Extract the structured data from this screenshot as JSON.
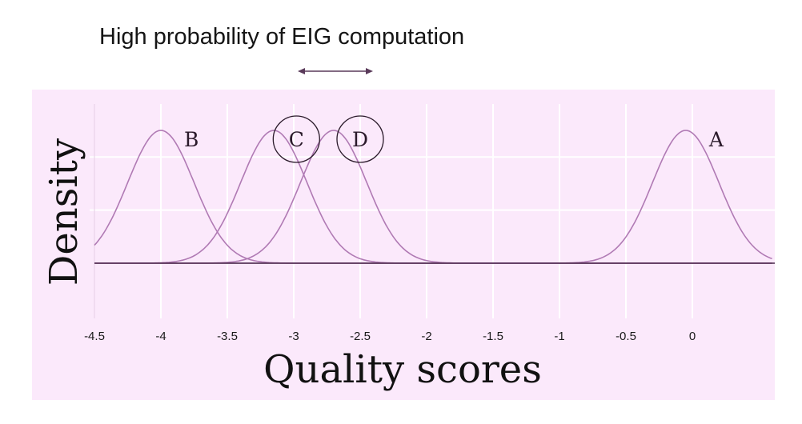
{
  "annotation": {
    "text": "High probability of EIG computation",
    "arrow": "double-headed"
  },
  "chart_data": {
    "type": "line",
    "title": "",
    "xlabel": "Quality scores",
    "ylabel": "Density",
    "xlim": [
      -4.5,
      0.6
    ],
    "ylim": [
      0,
      1.1
    ],
    "x_ticks": [
      -4.5,
      -4,
      -3.5,
      -3,
      -2.5,
      -2,
      -1.5,
      -1,
      -0.5,
      0
    ],
    "x_tick_labels": [
      "-4.5",
      "-4",
      "-3.5",
      "-3",
      "-2.5",
      "-2",
      "-1.5",
      "-1",
      "-0.5",
      "0"
    ],
    "grid": true,
    "series": [
      {
        "name": "B",
        "mean": -4.0,
        "sd": 0.25,
        "peak": 1.0,
        "circled": false
      },
      {
        "name": "C",
        "mean": -3.15,
        "sd": 0.25,
        "peak": 1.0,
        "circled": true
      },
      {
        "name": "D",
        "mean": -2.7,
        "sd": 0.25,
        "peak": 1.0,
        "circled": true
      },
      {
        "name": "A",
        "mean": -0.05,
        "sd": 0.25,
        "peak": 1.0,
        "circled": false
      }
    ],
    "colors": {
      "plot_background": "#fbe9fb",
      "grid": "#ffffff",
      "curve": "#b07ab4",
      "baseline": "#4a2a4a",
      "arrow": "#5a3a5a"
    }
  }
}
